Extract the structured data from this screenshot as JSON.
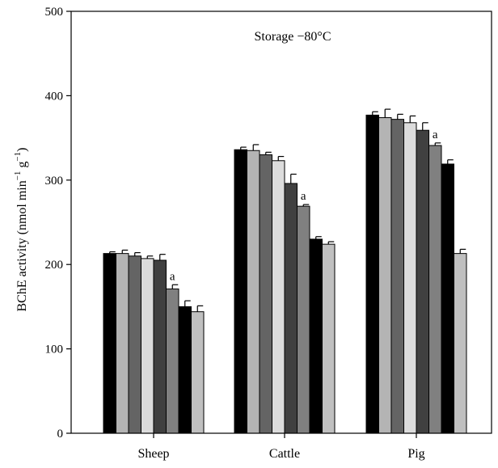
{
  "chart_data": {
    "type": "bar",
    "title": "",
    "annotation": "Storage −80°C",
    "ylabel_parts": {
      "main": "BChE activity (nmol min",
      "exp1": "−1",
      "mid": " g",
      "exp2": "−1",
      "end": ")"
    },
    "xlabel": "",
    "ylim": [
      0,
      500
    ],
    "yticks": [
      0,
      100,
      200,
      300,
      400,
      500
    ],
    "categories": [
      "Sheep",
      "Cattle",
      "Pig"
    ],
    "series_colors": [
      "#000000",
      "#b4b4b4",
      "#646464",
      "#dcdcdc",
      "#404040",
      "#808080",
      "#000000",
      "#c0c0c0"
    ],
    "values": [
      [
        213,
        213,
        210,
        207,
        205,
        171,
        150,
        144
      ],
      [
        336,
        335,
        330,
        323,
        296,
        269,
        230,
        224
      ],
      [
        377,
        374,
        372,
        368,
        359,
        341,
        319,
        213
      ]
    ],
    "errors": [
      [
        2,
        4,
        4,
        3,
        7,
        5,
        7,
        7
      ],
      [
        3,
        7,
        3,
        5,
        11,
        2,
        3,
        3
      ],
      [
        4,
        10,
        6,
        8,
        9,
        3,
        5,
        5
      ]
    ],
    "significance": [
      {
        "category": 0,
        "bar": 5,
        "label": "a"
      },
      {
        "category": 1,
        "bar": 5,
        "label": "a"
      },
      {
        "category": 2,
        "bar": 5,
        "label": "a"
      }
    ],
    "grid": false,
    "legend": "none"
  }
}
